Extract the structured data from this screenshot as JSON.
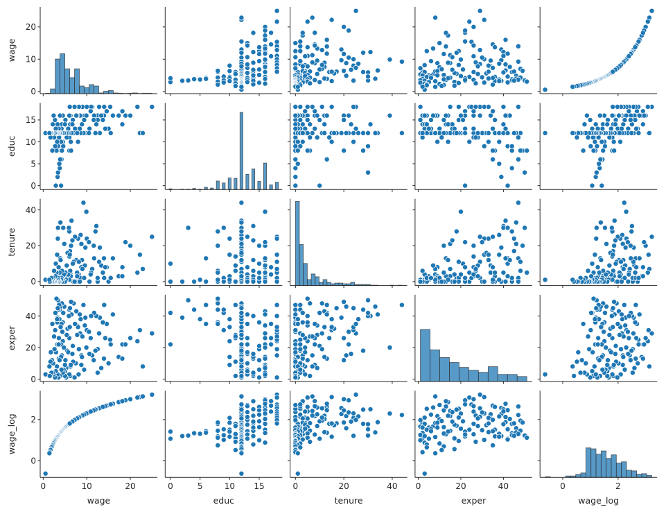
{
  "chart_data": {
    "type": "scatter",
    "kind": "pairplot",
    "variables": [
      "wage",
      "educ",
      "tenure",
      "exper",
      "wage_log"
    ],
    "colors": {
      "marker": "#1f77b4",
      "marker_edge": "#ffffff",
      "axis": "#262626"
    },
    "axes": {
      "wage": {
        "range": [
          -0.69,
          26.2
        ],
        "ticks": [
          0,
          10,
          20
        ]
      },
      "educ": {
        "range": [
          -0.9,
          18.9
        ],
        "ticks": [
          0,
          5,
          10,
          15
        ]
      },
      "tenure": {
        "range": [
          -2.2,
          46.2
        ],
        "ticks": [
          0,
          20,
          40
        ]
      },
      "exper": {
        "range": [
          -1.5,
          53.5
        ],
        "ticks": [
          0,
          20,
          40
        ]
      },
      "wage_log": {
        "range": [
          -0.82,
          3.41
        ],
        "ticks": [
          0,
          2
        ]
      }
    },
    "histograms": {
      "wage": {
        "start": 0.53,
        "bin_width": 1.111,
        "counts": [
          2,
          20,
          145,
          167,
          104,
          67,
          104,
          32,
          25,
          38,
          32,
          3,
          10,
          13,
          3,
          2,
          1,
          2,
          3,
          1,
          2,
          2
        ]
      },
      "educ": {
        "centers": [
          0,
          2,
          3,
          4,
          5,
          6,
          7,
          8,
          9,
          10,
          11,
          12,
          13,
          14,
          15,
          16,
          17,
          18
        ],
        "bin_width": 0.5,
        "counts": [
          2,
          1,
          1,
          3,
          1,
          6,
          4,
          22,
          17,
          30,
          29,
          198,
          39,
          53,
          21,
          68,
          12,
          19
        ]
      },
      "tenure": {
        "start": 0,
        "bin_width": 1.63,
        "counts": [
          240,
          117,
          63,
          17,
          33,
          25,
          9,
          17,
          9,
          5,
          7,
          7,
          5,
          5,
          9,
          3,
          3,
          3,
          3,
          1,
          1,
          0,
          0,
          0,
          1,
          0,
          1
        ]
      },
      "exper": {
        "start": 1,
        "bin_width": 4.545,
        "counts": [
          74,
          45,
          34,
          27,
          20,
          16,
          13,
          21,
          10,
          10,
          7
        ]
      },
      "wage_log": {
        "start": -0.63,
        "bin_width": 0.1833,
        "counts": [
          3,
          0,
          0,
          0,
          6,
          6,
          13,
          19,
          127,
          123,
          100,
          114,
          82,
          97,
          62,
          67,
          31,
          28,
          14,
          16,
          8
        ]
      }
    },
    "observation_columns": [
      "wage",
      "educ",
      "tenure",
      "exper"
    ],
    "observations": [
      [
        3.1,
        11,
        0,
        2
      ],
      [
        3.24,
        12,
        2,
        22
      ],
      [
        3.0,
        11,
        0,
        2
      ],
      [
        6.0,
        8,
        28,
        44
      ],
      [
        5.3,
        12,
        2,
        7
      ],
      [
        8.75,
        16,
        8,
        9
      ],
      [
        11.25,
        18,
        7,
        15
      ],
      [
        5.0,
        12,
        3,
        5
      ],
      [
        3.6,
        12,
        3,
        26
      ],
      [
        18.18,
        17,
        8,
        22
      ],
      [
        6.25,
        16,
        4,
        8
      ],
      [
        8.13,
        13,
        4,
        3
      ],
      [
        8.77,
        12,
        21,
        15
      ],
      [
        5.5,
        12,
        2,
        18
      ],
      [
        22.2,
        12,
        15,
        31
      ],
      [
        17.33,
        16,
        3,
        14
      ],
      [
        7.5,
        12,
        0,
        10
      ],
      [
        10.63,
        13,
        0,
        16
      ],
      [
        3.6,
        12,
        0,
        13
      ],
      [
        4.5,
        12,
        3,
        36
      ],
      [
        6.88,
        12,
        0,
        11
      ],
      [
        8.48,
        16,
        2,
        29
      ],
      [
        6.33,
        10,
        3,
        9
      ],
      [
        0.53,
        12,
        1,
        3
      ],
      [
        6.0,
        11,
        14,
        26
      ],
      [
        9.56,
        16,
        9,
        34
      ],
      [
        7.78,
        16,
        5,
        34
      ],
      [
        12.5,
        16,
        0,
        4
      ],
      [
        12.5,
        15,
        2,
        19
      ],
      [
        3.25,
        8,
        0,
        36
      ],
      [
        13.0,
        12,
        19,
        39
      ],
      [
        4.5,
        10,
        0,
        24
      ],
      [
        9.68,
        12,
        19,
        39
      ],
      [
        5.0,
        12,
        2,
        9
      ],
      [
        4.68,
        12,
        2,
        6
      ],
      [
        4.27,
        14,
        3,
        15
      ],
      [
        6.15,
        12,
        17,
        45
      ],
      [
        2.9,
        0,
        10,
        42
      ],
      [
        4.1,
        0,
        0,
        22
      ],
      [
        3.3,
        2,
        0,
        39
      ],
      [
        3.4,
        3,
        30,
        50
      ],
      [
        3.8,
        4,
        0,
        44
      ],
      [
        3.7,
        5,
        1,
        38
      ],
      [
        4.2,
        6,
        0,
        35
      ],
      [
        3.9,
        6,
        13,
        47
      ],
      [
        24.98,
        18,
        25,
        29
      ],
      [
        22.86,
        12,
        7,
        8
      ],
      [
        21.63,
        18,
        5,
        24
      ],
      [
        20.0,
        16,
        20,
        26
      ],
      [
        18.89,
        16,
        22,
        22
      ],
      [
        18.16,
        14,
        3,
        13
      ],
      [
        15.38,
        18,
        2,
        25
      ],
      [
        15.0,
        13,
        0,
        10
      ],
      [
        14.58,
        17,
        8,
        35
      ],
      [
        14.0,
        18,
        2,
        47
      ],
      [
        13.95,
        16,
        13,
        13
      ],
      [
        13.33,
        16,
        9,
        7
      ],
      [
        12.84,
        18,
        11,
        29
      ],
      [
        12.2,
        14,
        31,
        40
      ],
      [
        11.7,
        16,
        13,
        42
      ],
      [
        11.0,
        18,
        5,
        40
      ],
      [
        10.0,
        18,
        24,
        31
      ],
      [
        10.5,
        12,
        22,
        30
      ],
      [
        9.91,
        16,
        39,
        20
      ],
      [
        9.24,
        12,
        44,
        47
      ],
      [
        8.9,
        14,
        12,
        14
      ],
      [
        8.6,
        12,
        26,
        38
      ],
      [
        8.0,
        10,
        24,
        33
      ],
      [
        7.6,
        16,
        12,
        43
      ],
      [
        7.3,
        13,
        25,
        35
      ],
      [
        7.0,
        12,
        11,
        48
      ],
      [
        6.8,
        15,
        10,
        21
      ],
      [
        6.5,
        12,
        34,
        41
      ],
      [
        6.4,
        8,
        20,
        49
      ],
      [
        6.2,
        14,
        6,
        2
      ],
      [
        6.0,
        16,
        1,
        3
      ],
      [
        5.9,
        12,
        30,
        40
      ],
      [
        5.75,
        13,
        4,
        17
      ],
      [
        5.6,
        12,
        16,
        32
      ],
      [
        5.4,
        11,
        9,
        28
      ],
      [
        5.25,
        12,
        1,
        1
      ],
      [
        5.1,
        15,
        5,
        12
      ],
      [
        5.0,
        14,
        0,
        2
      ],
      [
        4.85,
        12,
        21,
        46
      ],
      [
        4.75,
        12,
        4,
        20
      ],
      [
        4.6,
        9,
        30,
        42
      ],
      [
        4.5,
        16,
        1,
        4
      ],
      [
        4.4,
        12,
        0,
        30
      ],
      [
        4.3,
        8,
        6,
        48
      ],
      [
        4.2,
        13,
        2,
        6
      ],
      [
        4.1,
        10,
        1,
        14
      ],
      [
        4.0,
        12,
        12,
        33
      ],
      [
        3.95,
        12,
        33,
        46
      ],
      [
        3.85,
        16,
        0,
        2
      ],
      [
        3.75,
        12,
        5,
        12
      ],
      [
        3.65,
        11,
        0,
        47
      ],
      [
        3.55,
        13,
        8,
        22
      ],
      [
        3.5,
        12,
        0,
        1
      ],
      [
        3.45,
        9,
        2,
        44
      ],
      [
        3.35,
        12,
        24,
        45
      ],
      [
        3.3,
        14,
        1,
        3
      ],
      [
        3.2,
        10,
        15,
        38
      ],
      [
        3.15,
        12,
        0,
        8
      ],
      [
        3.05,
        8,
        5,
        51
      ],
      [
        2.95,
        12,
        0,
        17
      ],
      [
        2.9,
        13,
        1,
        5
      ],
      [
        2.8,
        12,
        3,
        42
      ],
      [
        2.75,
        9,
        0,
        31
      ],
      [
        2.7,
        15,
        0,
        1
      ],
      [
        2.6,
        12,
        0,
        19
      ],
      [
        2.5,
        11,
        6,
        27
      ],
      [
        2.4,
        16,
        0,
        3
      ],
      [
        2.3,
        12,
        2,
        10
      ],
      [
        2.2,
        14,
        0,
        4
      ],
      [
        2.1,
        8,
        1,
        35
      ],
      [
        2.0,
        12,
        0,
        12
      ],
      [
        1.9,
        12,
        2,
        4
      ],
      [
        1.75,
        12,
        0,
        17
      ],
      [
        1.67,
        11,
        0,
        11
      ],
      [
        1.5,
        12,
        0,
        2
      ],
      [
        1.43,
        12,
        1,
        8
      ],
      [
        16.0,
        16,
        13,
        41
      ],
      [
        15.5,
        12,
        2,
        22
      ],
      [
        14.25,
        13,
        8,
        26
      ],
      [
        13.7,
        15,
        5,
        36
      ],
      [
        12.0,
        12,
        28,
        18
      ],
      [
        11.6,
        15,
        20,
        12
      ],
      [
        10.9,
        17,
        4,
        26
      ],
      [
        9.4,
        15,
        2,
        6
      ],
      [
        9.0,
        18,
        7,
        27
      ],
      [
        8.4,
        13,
        0,
        41
      ],
      [
        8.2,
        18,
        11,
        19
      ],
      [
        7.8,
        12,
        3,
        28
      ],
      [
        7.2,
        18,
        0,
        1
      ],
      [
        6.7,
        14,
        23,
        16
      ],
      [
        6.1,
        18,
        15,
        33
      ]
    ]
  }
}
